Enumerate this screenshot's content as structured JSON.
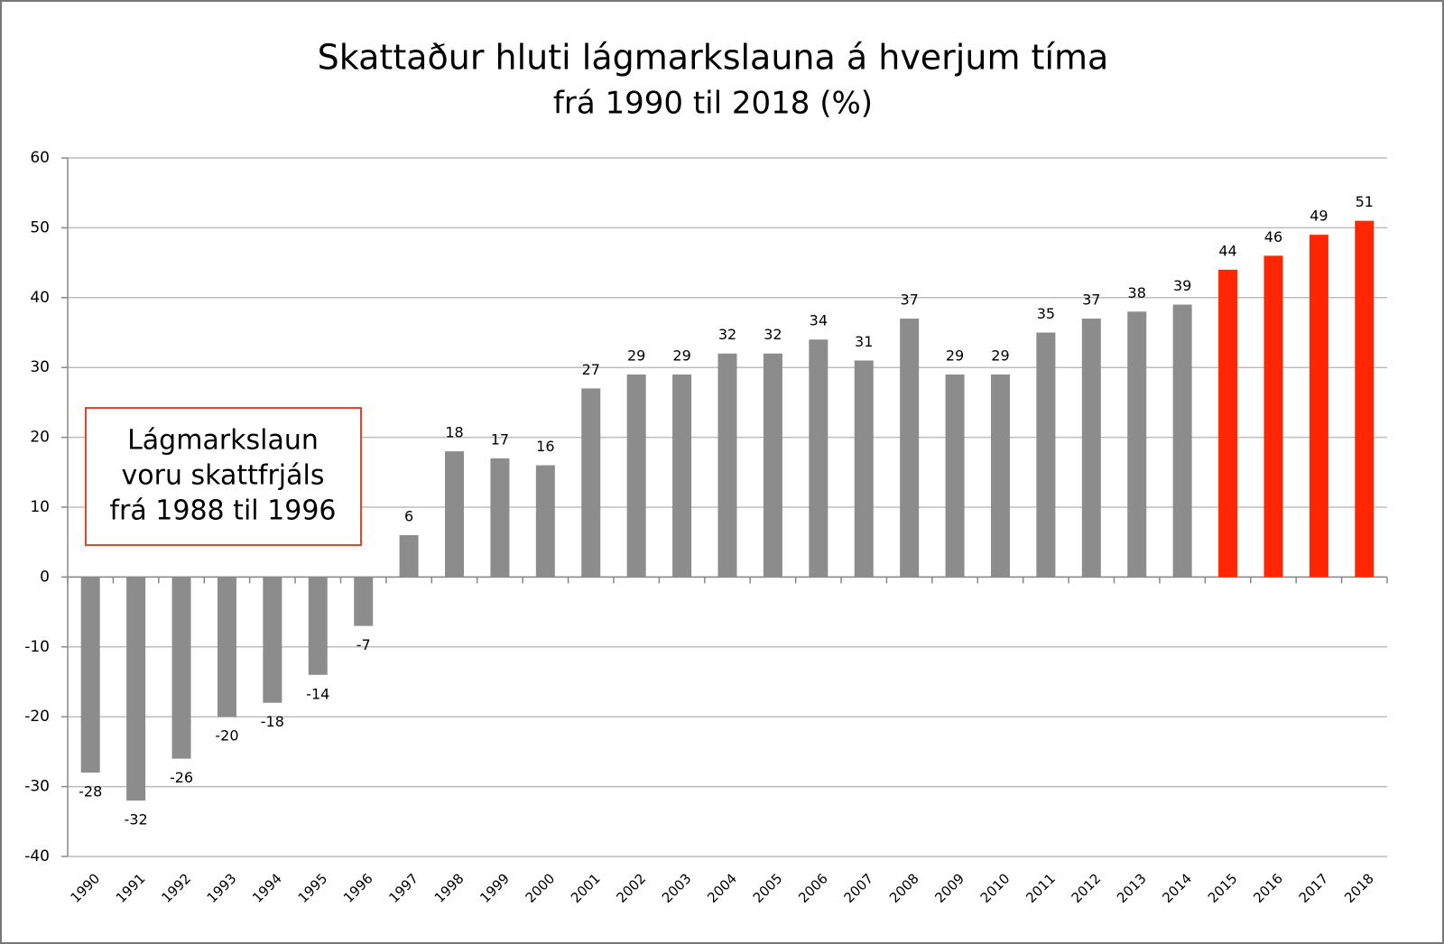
{
  "chart_data": {
    "type": "bar",
    "title": "Skattaður hluti lágmarkslauna á hverjum tíma",
    "subtitle": "frá 1990 til 2018 (%)",
    "categories": [
      "1990",
      "1991",
      "1992",
      "1993",
      "1994",
      "1995",
      "1996",
      "1997",
      "1998",
      "1999",
      "2000",
      "2001",
      "2002",
      "2003",
      "2004",
      "2005",
      "2006",
      "2007",
      "2008",
      "2009",
      "2010",
      "2011",
      "2012",
      "2013",
      "2014",
      "2015",
      "2016",
      "2017",
      "2018"
    ],
    "values": [
      -28,
      -32,
      -26,
      -20,
      -18,
      -14,
      -7,
      6,
      18,
      17,
      16,
      27,
      29,
      29,
      32,
      32,
      34,
      31,
      37,
      29,
      29,
      35,
      37,
      38,
      39,
      44,
      46,
      49,
      51
    ],
    "colors": [
      "#8c8c8c",
      "#8c8c8c",
      "#8c8c8c",
      "#8c8c8c",
      "#8c8c8c",
      "#8c8c8c",
      "#8c8c8c",
      "#8c8c8c",
      "#8c8c8c",
      "#8c8c8c",
      "#8c8c8c",
      "#8c8c8c",
      "#8c8c8c",
      "#8c8c8c",
      "#8c8c8c",
      "#8c8c8c",
      "#8c8c8c",
      "#8c8c8c",
      "#8c8c8c",
      "#8c8c8c",
      "#8c8c8c",
      "#8c8c8c",
      "#8c8c8c",
      "#8c8c8c",
      "#8c8c8c",
      "#ff2600",
      "#ff2600",
      "#ff2600",
      "#ff2600"
    ],
    "ylim": [
      -40,
      60
    ],
    "yticks": [
      -40,
      -30,
      -20,
      -10,
      0,
      10,
      20,
      30,
      40,
      50,
      60
    ],
    "grid": true,
    "annotation": {
      "lines": [
        "Lágmarkslaun",
        "voru skattfrjáls",
        "frá 1988 til 1996"
      ]
    }
  }
}
